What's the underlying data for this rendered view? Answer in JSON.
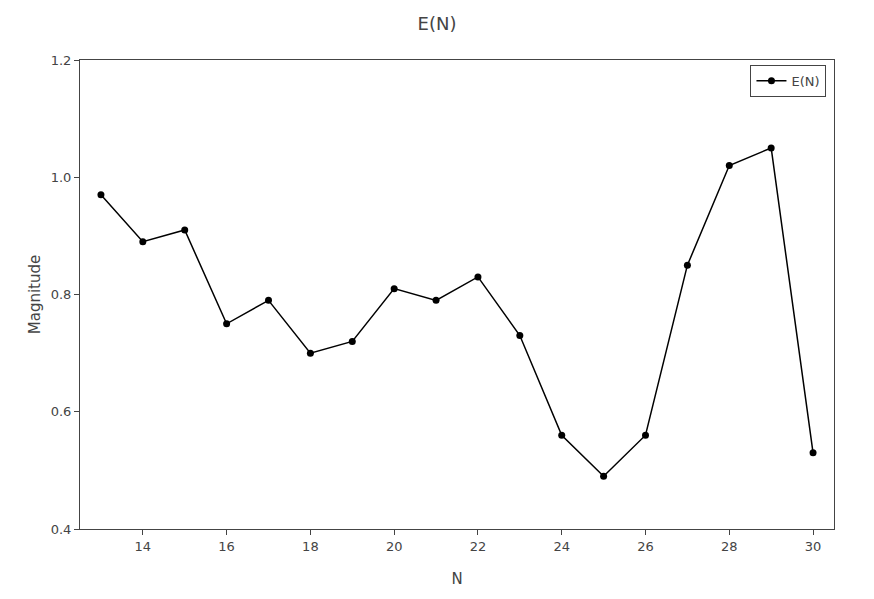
{
  "chart_data": {
    "type": "line",
    "title": "E(N)",
    "x_label": "N",
    "y_label": "Magnitude",
    "x": [
      13,
      14,
      15,
      16,
      17,
      18,
      19,
      20,
      21,
      22,
      23,
      24,
      25,
      26,
      27,
      28,
      29,
      30
    ],
    "series": [
      {
        "name": "E(N)",
        "color": "#000000",
        "marker": "circle",
        "line_style": "solid",
        "values": [
          0.97,
          0.89,
          0.91,
          0.75,
          0.79,
          0.7,
          0.72,
          0.81,
          0.79,
          0.83,
          0.73,
          0.56,
          0.49,
          0.56,
          0.85,
          1.02,
          1.05,
          0.53
        ]
      }
    ],
    "xlim": [
      12.5,
      30.5
    ],
    "ylim": [
      0.4,
      1.2
    ],
    "xticks": [
      14,
      16,
      18,
      20,
      22,
      24,
      26,
      28,
      30
    ],
    "yticks": [
      0.4,
      0.6,
      0.8,
      {
        "value": 1.0,
        "label": "1.0"
      },
      1.2
    ],
    "grid": false,
    "legend": "upper right"
  }
}
